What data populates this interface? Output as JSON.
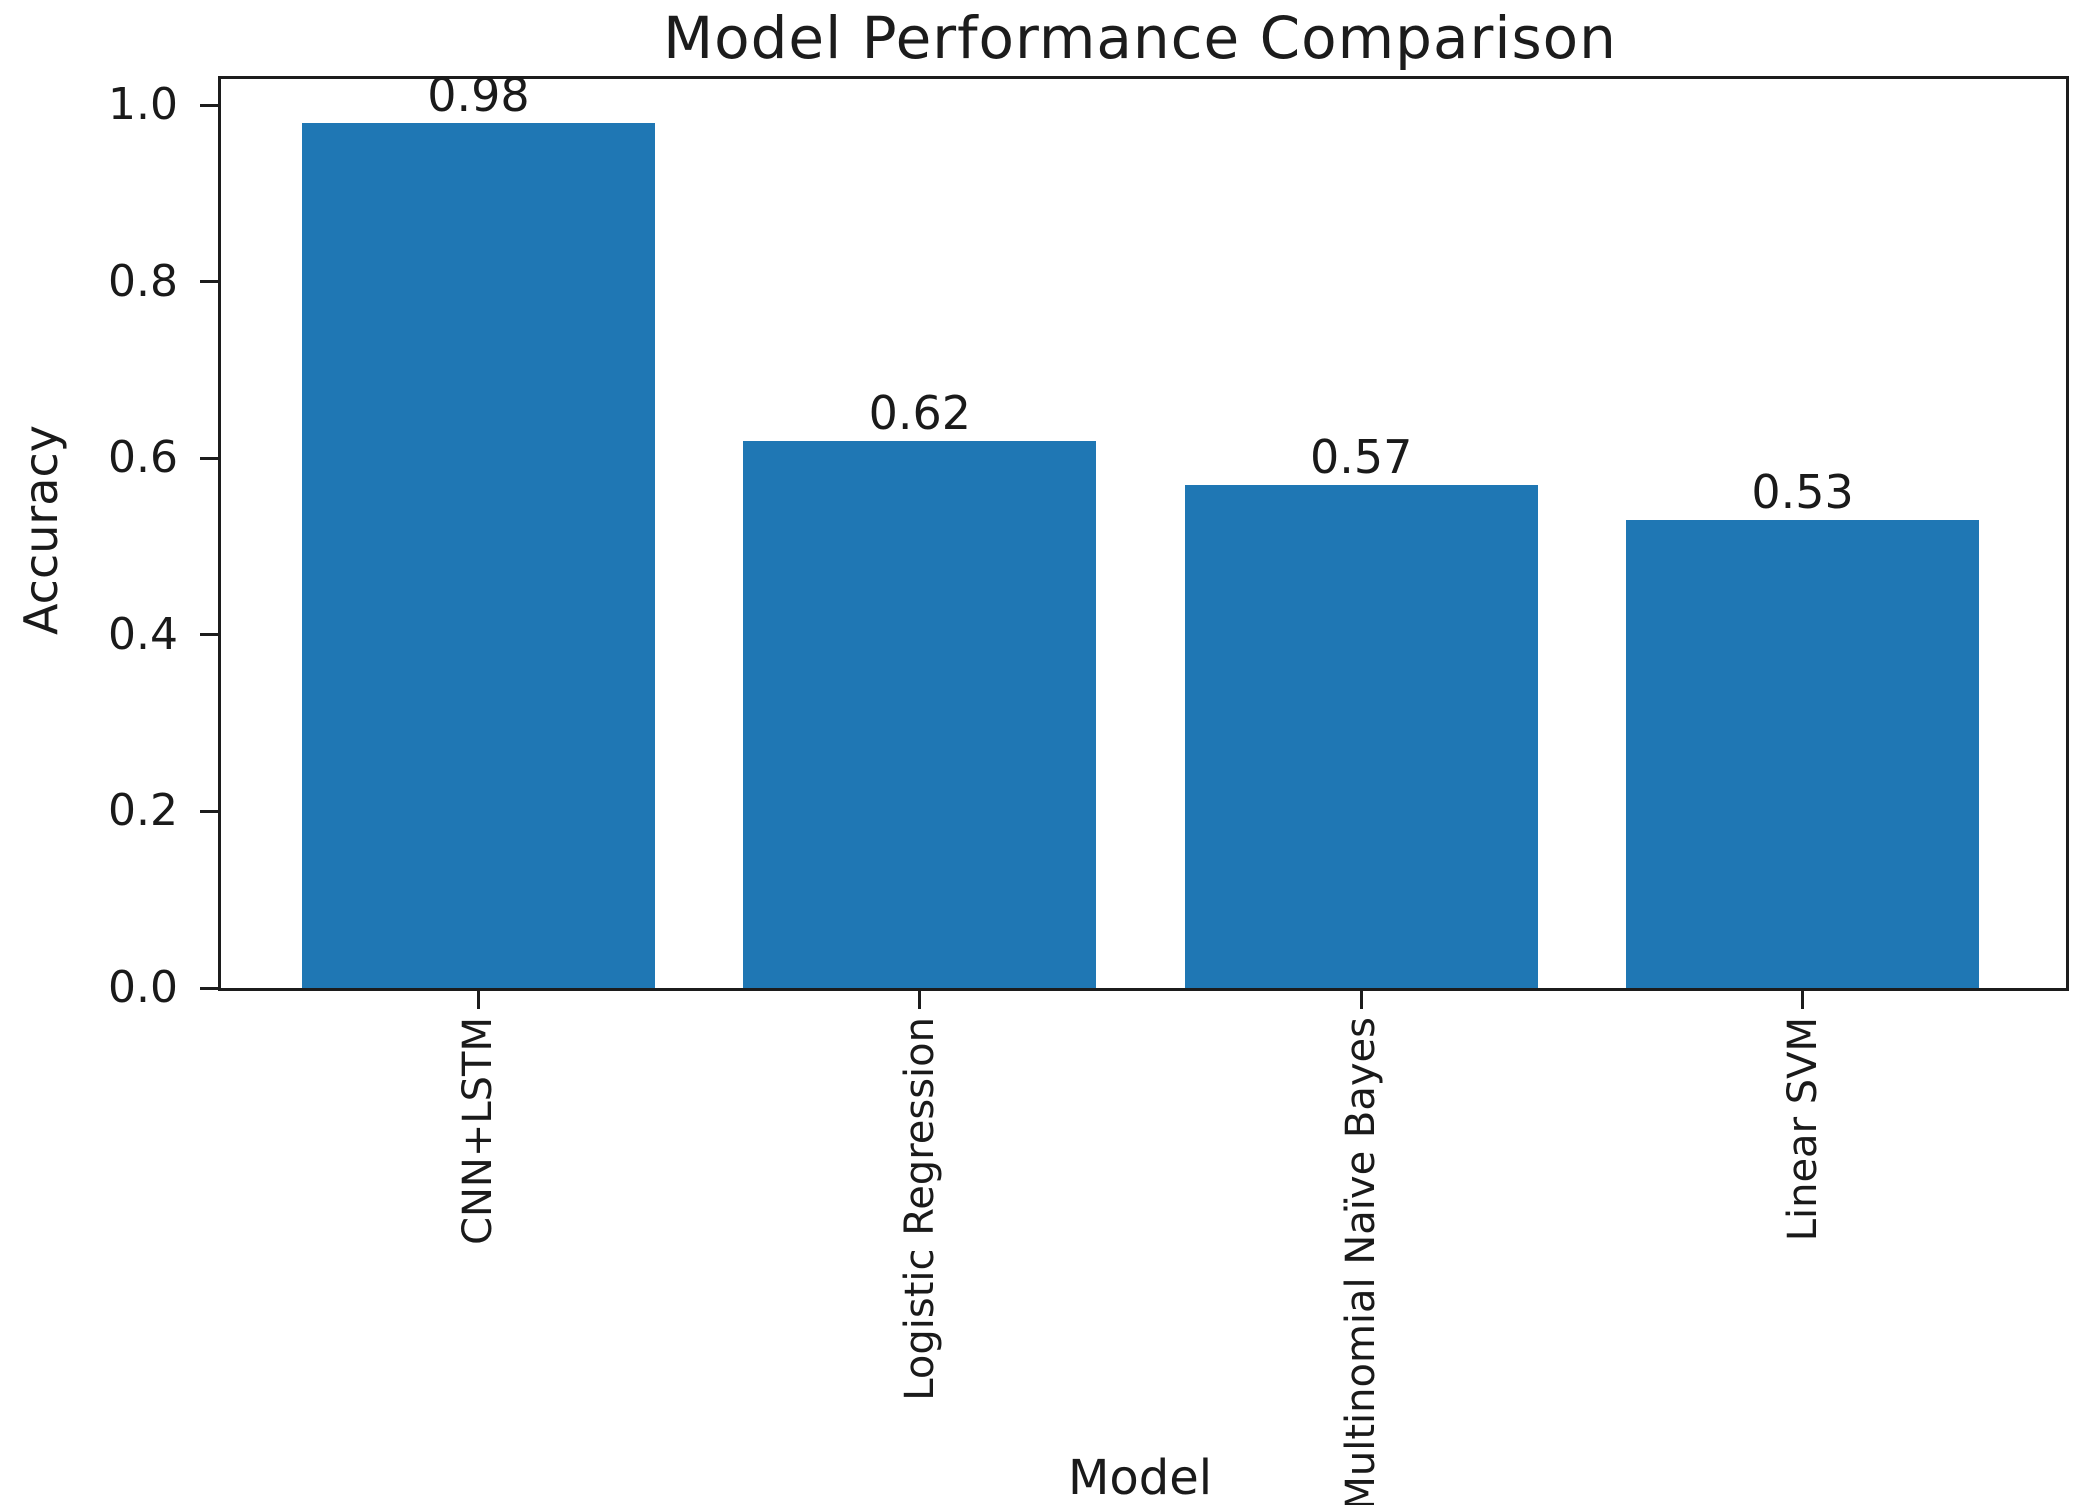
{
  "chart_data": {
    "type": "bar",
    "title": "Model Performance Comparison",
    "xlabel": "Model",
    "ylabel": "Accuracy",
    "categories": [
      "CNN+LSTM",
      "Logistic Regression",
      "Multinomial Naïve Bayes",
      "Linear SVM"
    ],
    "values": [
      0.98,
      0.62,
      0.57,
      0.53
    ],
    "value_labels": [
      "0.98",
      "0.62",
      "0.57",
      "0.53"
    ],
    "yticks": [
      0.0,
      0.2,
      0.4,
      0.6,
      0.8,
      1.0
    ],
    "ytick_labels": [
      "0.0",
      "0.2",
      "0.4",
      "0.6",
      "0.8",
      "1.0"
    ],
    "ylim": [
      0,
      1.03
    ],
    "bar_width_fraction": 0.8,
    "x_edge_margin": 0.59,
    "grid": false,
    "legend_position": "none",
    "bar_color": "#1f77b4",
    "axis_color": "#1c1c1c",
    "text_color": "#1a1a1a"
  }
}
